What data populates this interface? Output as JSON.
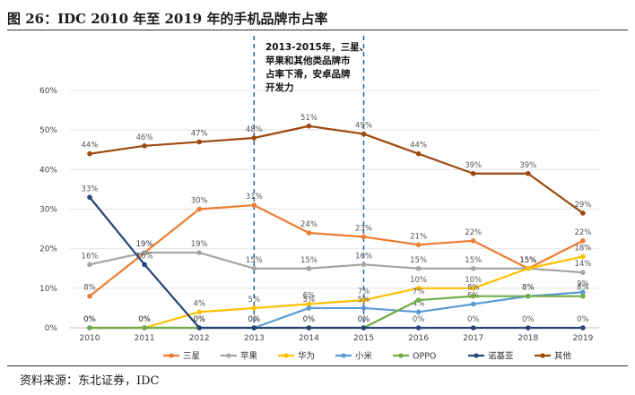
{
  "title": "图 26：IDC 2010 年至 2019 年的手机品牌市占率",
  "source": "资料来源：东北证券，IDC",
  "chart_data": {
    "type": "line",
    "x": [
      "2010",
      "2011",
      "2012",
      "2013",
      "2014",
      "2015",
      "2016",
      "2017",
      "2018",
      "2019"
    ],
    "yticks": [
      "0%",
      "10%",
      "20%",
      "30%",
      "40%",
      "50%",
      "60%"
    ],
    "ylim": [
      0,
      60
    ],
    "annotation": {
      "lines": [
        "2013-2015年，三星、",
        "苹果和其他类品牌市",
        "占率下滑，安卓品牌",
        "开发力"
      ],
      "range": [
        "2013",
        "2015"
      ]
    },
    "series": [
      {
        "name": "三星",
        "color": "#ED7D31",
        "values": [
          8,
          19,
          30,
          31,
          24,
          23,
          21,
          22,
          15,
          22
        ],
        "labels": [
          "8%",
          "19%",
          "30%",
          "31%",
          "24%",
          "23%",
          "21%",
          "22%",
          "15%",
          "22%"
        ]
      },
      {
        "name": "苹果",
        "color": "#A5A5A5",
        "values": [
          16,
          19,
          19,
          15,
          15,
          16,
          15,
          15,
          15,
          14
        ],
        "labels": [
          "16%",
          "19%",
          "19%",
          "15%",
          "15%",
          "16%",
          "15%",
          "15%",
          "15%",
          "14%"
        ]
      },
      {
        "name": "华为",
        "color": "#FFC000",
        "values": [
          0,
          0,
          4,
          5,
          6,
          7,
          10,
          10,
          15,
          18
        ],
        "labels": [
          "0%",
          "0%",
          "4%",
          "5%",
          "6%",
          "7%",
          "10%",
          "10%",
          "15%",
          "18%"
        ]
      },
      {
        "name": "小米",
        "color": "#5B9BD5",
        "values": [
          0,
          0,
          0,
          0,
          5,
          5,
          4,
          6,
          8,
          9
        ],
        "labels": [
          "0%",
          "0%",
          "0%",
          "0%",
          "5%",
          "5%",
          "4%",
          "6%",
          "8%",
          "9%"
        ]
      },
      {
        "name": "OPPO",
        "color": "#70AD47",
        "values": [
          0,
          0,
          0,
          0,
          0,
          0,
          7,
          8,
          8,
          8
        ],
        "labels": [
          "0%",
          "0%",
          "0%",
          "0%",
          "0%",
          "0%",
          "7%",
          "8%",
          "8%",
          "8%"
        ]
      },
      {
        "name": "诺基亚",
        "color": "#264478",
        "values": [
          33,
          16,
          0,
          0,
          0,
          0,
          0,
          0,
          0,
          0
        ],
        "labels": [
          "33%",
          "16%",
          "0%",
          "0%",
          "0%",
          "0%",
          "0%",
          "0%",
          "0%",
          "0%"
        ]
      },
      {
        "name": "其他",
        "color": "#9E480E",
        "values": [
          44,
          46,
          47,
          48,
          51,
          49,
          44,
          39,
          39,
          29
        ],
        "labels": [
          "44%",
          "46%",
          "47%",
          "48%",
          "51%",
          "49%",
          "44%",
          "39%",
          "39%",
          "29%"
        ]
      }
    ]
  }
}
